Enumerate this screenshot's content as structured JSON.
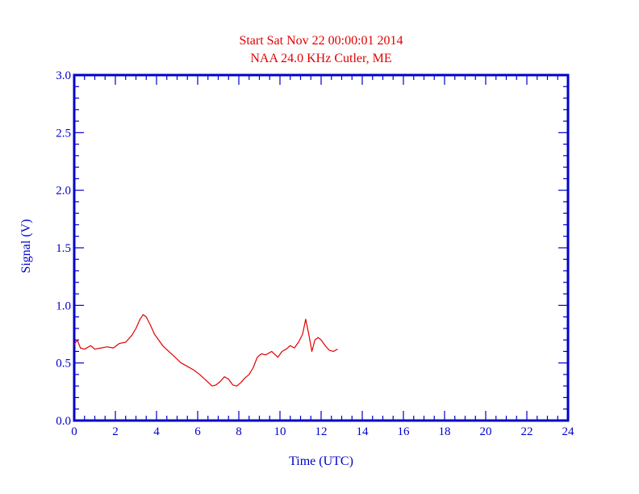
{
  "chart_data": {
    "type": "line",
    "title": "Start Sat Nov 22 00:00:01 2014",
    "subtitle": "NAA 24.0  KHz  Cutler, ME",
    "xlabel": "Time (UTC)",
    "ylabel": "Signal (V)",
    "xlim": [
      0,
      24
    ],
    "ylim": [
      0,
      3.0
    ],
    "x_ticks": [
      "0",
      "2",
      "4",
      "6",
      "8",
      "10",
      "12",
      "14",
      "16",
      "18",
      "20",
      "22",
      "24"
    ],
    "y_ticks": [
      "0.0",
      "0.5",
      "1.0",
      "1.5",
      "2.0",
      "2.5",
      "3.0"
    ],
    "grid": false,
    "series": [
      {
        "color": "#e00000",
        "x": [
          0.0,
          0.15,
          0.3,
          0.5,
          0.8,
          1.0,
          1.3,
          1.6,
          1.9,
          2.2,
          2.5,
          2.8,
          3.0,
          3.2,
          3.35,
          3.5,
          3.7,
          3.9,
          4.1,
          4.3,
          4.6,
          4.9,
          5.2,
          5.5,
          5.8,
          6.1,
          6.4,
          6.7,
          6.9,
          7.1,
          7.3,
          7.5,
          7.7,
          7.9,
          8.1,
          8.3,
          8.5,
          8.7,
          8.9,
          9.1,
          9.3,
          9.6,
          9.9,
          10.1,
          10.3,
          10.5,
          10.7,
          10.9,
          11.1,
          11.25,
          11.4,
          11.55,
          11.7,
          11.85,
          12.0,
          12.2,
          12.4,
          12.6,
          12.8
        ],
        "y": [
          0.66,
          0.7,
          0.63,
          0.62,
          0.65,
          0.62,
          0.63,
          0.64,
          0.63,
          0.67,
          0.68,
          0.74,
          0.8,
          0.88,
          0.92,
          0.9,
          0.83,
          0.75,
          0.7,
          0.65,
          0.6,
          0.55,
          0.5,
          0.47,
          0.44,
          0.4,
          0.35,
          0.3,
          0.31,
          0.34,
          0.38,
          0.36,
          0.31,
          0.3,
          0.33,
          0.37,
          0.4,
          0.46,
          0.55,
          0.58,
          0.57,
          0.6,
          0.55,
          0.6,
          0.62,
          0.65,
          0.63,
          0.68,
          0.75,
          0.88,
          0.75,
          0.6,
          0.7,
          0.72,
          0.7,
          0.65,
          0.61,
          0.6,
          0.62
        ]
      }
    ]
  }
}
